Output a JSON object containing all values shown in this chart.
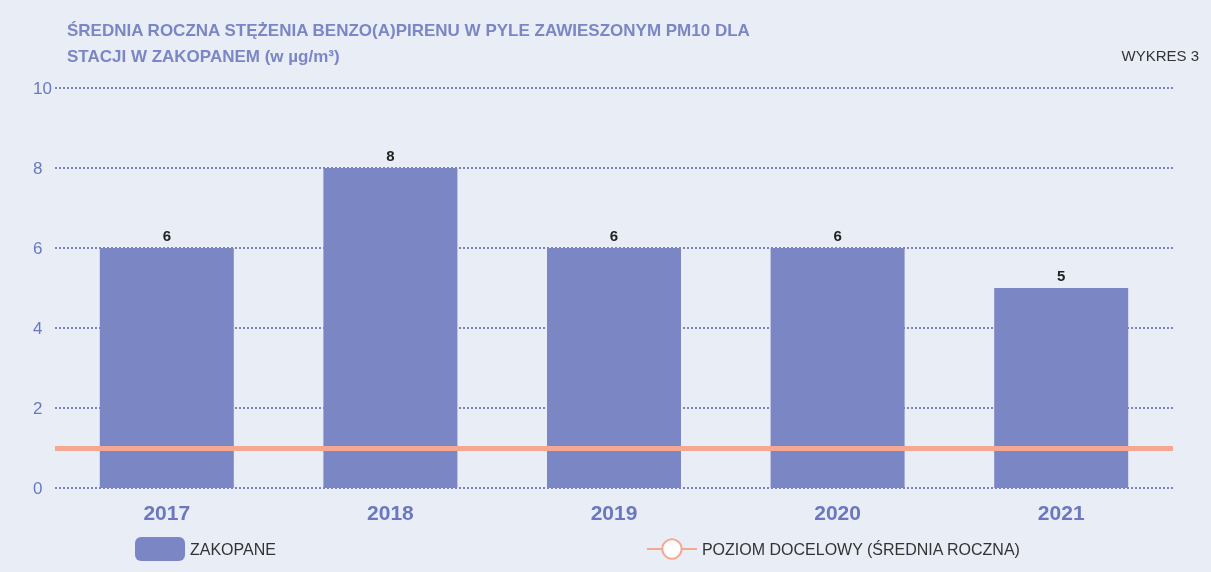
{
  "chart_data": {
    "type": "bar",
    "title": "ŚREDNIA ROCZNA STĘŻENIA BENZO(A)PIRENU W PYLE ZAWIESZONYM PM10 DLA STACJI W ZAKOPANEM (w µg/m³)",
    "annotations": [
      "WYKRES 3"
    ],
    "categories": [
      "2017",
      "2018",
      "2019",
      "2020",
      "2021"
    ],
    "series": [
      {
        "name": "ZAKOPANE",
        "color": "#7b86c4",
        "values": [
          6,
          8,
          6,
          6,
          5
        ]
      }
    ],
    "ylim": [
      0,
      10
    ],
    "yticks": [
      0,
      2,
      4,
      6,
      8,
      10
    ],
    "grid": "y",
    "data_labels": true,
    "legend": "bottom",
    "ref_lines": [
      {
        "axis": "y",
        "value": 1,
        "label": "POZIOM DOCELOWY (ŚREDNIA ROCZNA)",
        "color": "#f4a891"
      }
    ]
  }
}
